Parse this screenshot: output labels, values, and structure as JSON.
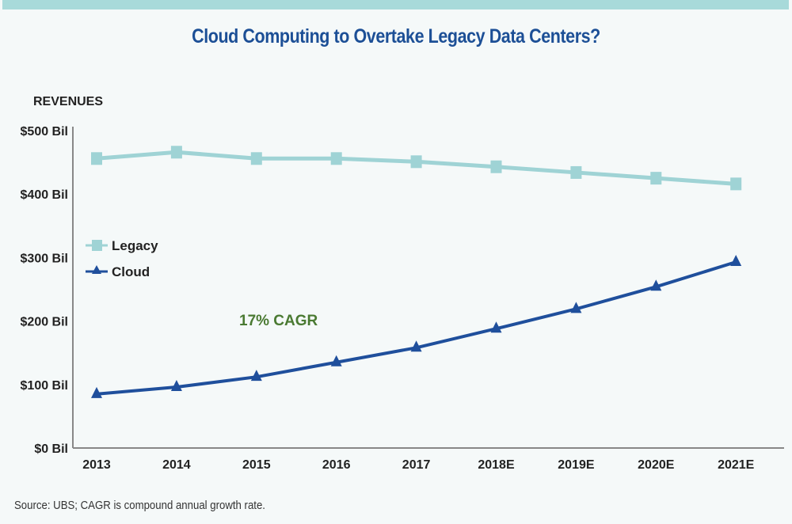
{
  "chart_data": {
    "type": "line",
    "title": "Cloud Computing to Overtake Legacy Data Centers?",
    "ylabel": "REVENUES",
    "xlabel": "",
    "categories": [
      "2013",
      "2014",
      "2015",
      "2016",
      "2017",
      "2018E",
      "2019E",
      "2020E",
      "2021E"
    ],
    "ylim": [
      0,
      500
    ],
    "yticks": [
      0,
      100,
      200,
      300,
      400,
      500
    ],
    "ytick_labels": [
      "$0 Bil",
      "$100 Bil",
      "$200 Bil",
      "$300 Bil",
      "$400 Bil",
      "$500 Bil"
    ],
    "series": [
      {
        "name": "Legacy",
        "color": "#9fd3d5",
        "marker": "square",
        "values": [
          456,
          466,
          456,
          456,
          451,
          443,
          434,
          425,
          416
        ]
      },
      {
        "name": "Cloud",
        "color": "#1f4f9c",
        "marker": "triangle",
        "values": [
          85,
          96,
          112,
          135,
          158,
          188,
          219,
          254,
          293
        ]
      }
    ],
    "annotation": {
      "text": "17% CAGR",
      "color": "#4a7a32"
    },
    "legend": "left",
    "grid": false,
    "source": "Source: UBS; CAGR is compound annual growth rate."
  }
}
